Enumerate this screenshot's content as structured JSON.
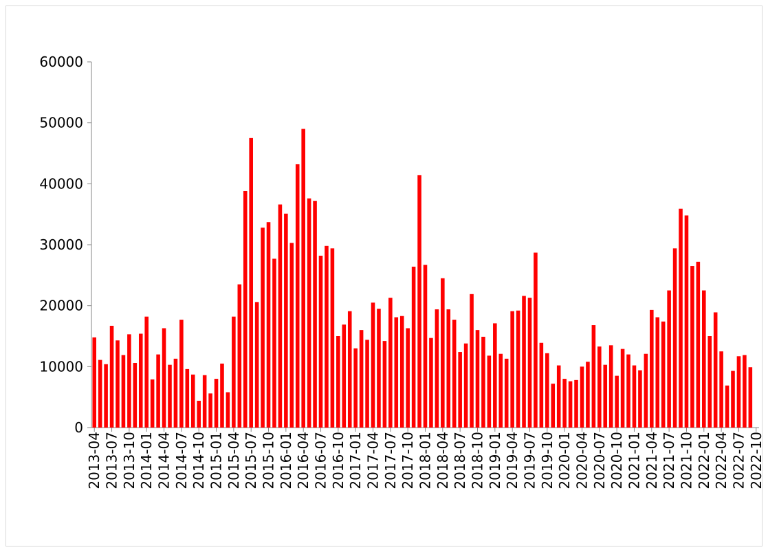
{
  "chart_data": {
    "type": "bar",
    "color": "#ff0000",
    "categories": [
      "2013-04",
      null,
      null,
      "2013-07",
      null,
      null,
      "2013-10",
      null,
      null,
      "2014-01",
      null,
      null,
      "2014-04",
      null,
      null,
      "2014-07",
      null,
      null,
      "2014-10",
      null,
      null,
      "2015-01",
      null,
      null,
      "2015-04",
      null,
      null,
      "2015-07",
      null,
      null,
      "2015-10",
      null,
      null,
      "2016-01",
      null,
      null,
      "2016-04",
      null,
      null,
      "2016-07",
      null,
      null,
      "2016-10",
      null,
      null,
      "2017-01",
      null,
      null,
      "2017-04",
      null,
      null,
      "2017-07",
      null,
      null,
      "2017-10",
      null,
      null,
      "2018-01",
      null,
      null,
      "2018-04",
      null,
      null,
      "2018-07",
      null,
      null,
      "2018-10",
      null,
      null,
      "2019-01",
      null,
      null,
      "2019-04",
      null,
      null,
      "2019-07",
      null,
      null,
      "2019-10",
      null,
      null,
      "2020-01",
      null,
      null,
      "2020-04",
      null,
      null,
      "2020-07",
      null,
      null,
      "2020-10",
      null,
      null,
      "2021-01",
      null,
      null,
      "2021-04",
      null,
      null,
      "2021-07",
      null,
      null,
      "2021-10",
      null,
      null,
      "2022-01",
      null,
      null,
      "2022-04",
      null,
      null,
      "2022-07",
      null,
      null,
      "2022-10"
    ],
    "values": [
      14800,
      11100,
      10400,
      16700,
      14300,
      11900,
      15300,
      10600,
      15400,
      18200,
      7900,
      12000,
      16300,
      10300,
      11300,
      17700,
      9600,
      8700,
      4400,
      8600,
      5600,
      8000,
      10500,
      5800,
      18200,
      23500,
      38800,
      47500,
      20600,
      32800,
      33700,
      27700,
      36600,
      35100,
      30300,
      43200,
      49000,
      37600,
      37200,
      28200,
      29800,
      29400,
      15000,
      16900,
      19100,
      13000,
      16000,
      14400,
      20500,
      19500,
      14200,
      21300,
      18100,
      18300,
      16300,
      26400,
      41400,
      26700,
      14700,
      19400,
      24500,
      19400,
      17700,
      12400,
      13800,
      21900,
      16000,
      14900,
      11800,
      17100,
      12100,
      11300,
      19100,
      19200,
      21600,
      21300,
      28700,
      13900,
      12200,
      7200,
      10200,
      8000,
      7600,
      7800,
      10000,
      10800,
      16800,
      13300,
      10300,
      13500,
      8500,
      12900,
      12000,
      10200,
      9400,
      12100,
      19300,
      18100,
      17400,
      22500,
      29400,
      35900,
      34800,
      26500,
      27200,
      22500,
      15000,
      18900,
      12500,
      6900,
      9300,
      11700,
      11900,
      9900,
      null
    ],
    "ylim": [
      0,
      60000
    ],
    "yticks": [
      0,
      10000,
      20000,
      30000,
      40000,
      50000,
      60000
    ],
    "grid": false
  }
}
